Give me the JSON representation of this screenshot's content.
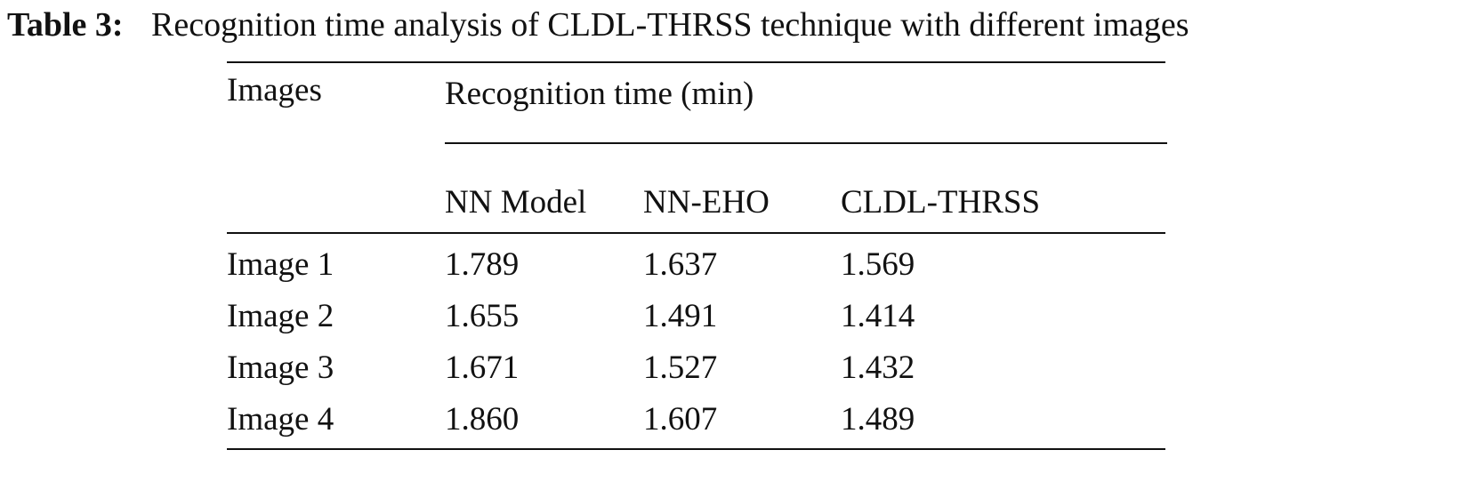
{
  "caption": {
    "label": "Table 3:",
    "title": "Recognition time analysis of CLDL-THRSS technique with different images"
  },
  "table": {
    "header": {
      "row_header": "Images",
      "group": "Recognition time (min)",
      "columns": [
        "NN Model",
        "NN-EHO",
        "CLDL-THRSS"
      ]
    },
    "rows": [
      [
        "Image 1",
        "1.789",
        "1.637",
        "1.569"
      ],
      [
        "Image 2",
        "1.655",
        "1.491",
        "1.414"
      ],
      [
        "Image 3",
        "1.671",
        "1.527",
        "1.432"
      ],
      [
        "Image 4",
        "1.860",
        "1.607",
        "1.489"
      ]
    ]
  }
}
